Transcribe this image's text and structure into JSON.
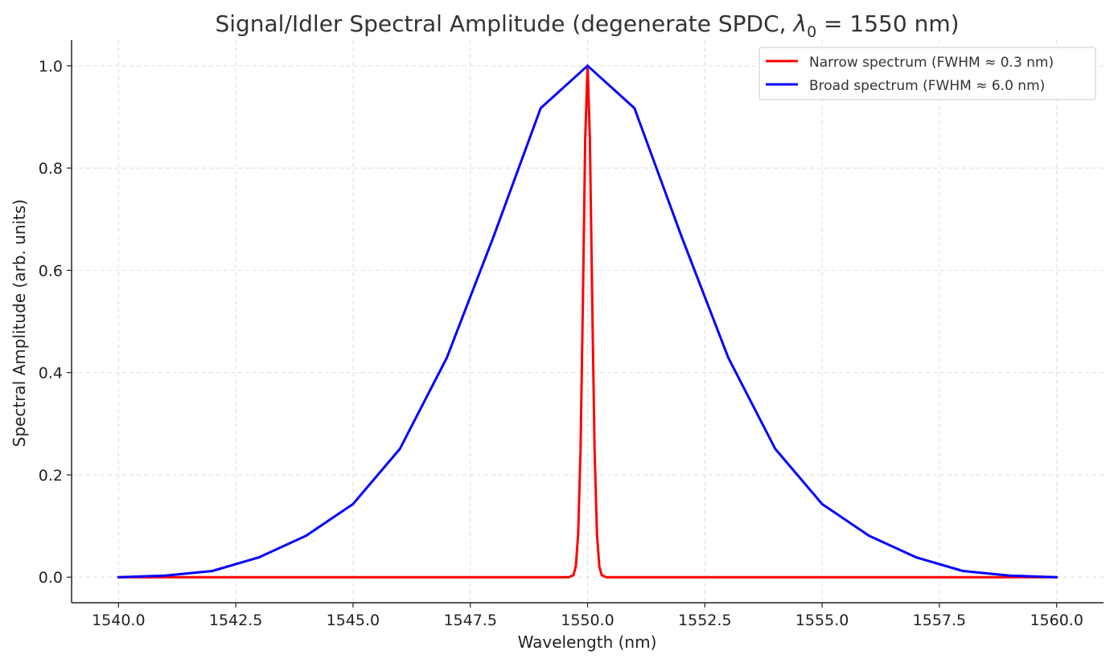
{
  "chart_data": {
    "type": "line",
    "title_main": "Signal/Idler Spectral Amplitude (degenerate SPDC, ",
    "title_symbol": "λ",
    "title_subscript": "0",
    "title_tail": " = 1550 nm)",
    "xlabel": "Wavelength (nm)",
    "ylabel": "Spectral Amplitude (arb. units)",
    "xlim": [
      1539.0,
      1561.0
    ],
    "ylim": [
      -0.05,
      1.05
    ],
    "x_ticks": [
      1540.0,
      1542.5,
      1545.0,
      1547.5,
      1550.0,
      1552.5,
      1555.0,
      1557.5,
      1560.0
    ],
    "x_tick_labels": [
      "1540.0",
      "1542.5",
      "1545.0",
      "1547.5",
      "1550.0",
      "1552.5",
      "1555.0",
      "1557.5",
      "1560.0"
    ],
    "y_ticks": [
      0.0,
      0.2,
      0.4,
      0.6,
      0.8,
      1.0
    ],
    "y_tick_labels": [
      "0.0",
      "0.2",
      "0.4",
      "0.6",
      "0.8",
      "1.0"
    ],
    "grid": true,
    "legend_position": "top-right",
    "series": [
      {
        "name": "Narrow spectrum (FWHM ≈ 0.3 nm)",
        "color": "#ff0000",
        "x": [
          1540.0,
          1549.6,
          1549.7,
          1549.75,
          1549.8,
          1549.85,
          1549.9,
          1549.95,
          1550.0,
          1550.05,
          1550.1,
          1550.15,
          1550.2,
          1550.25,
          1550.3,
          1550.4,
          1560.0
        ],
        "y": [
          0.0,
          0.0,
          0.004,
          0.021,
          0.084,
          0.25,
          0.54,
          0.857,
          1.0,
          0.857,
          0.54,
          0.25,
          0.084,
          0.021,
          0.004,
          0.0,
          0.0
        ]
      },
      {
        "name": "Broad spectrum (FWHM ≈ 6.0 nm)",
        "color": "#0000ff",
        "x": [
          1540.0,
          1541.0,
          1542.0,
          1543.0,
          1544.0,
          1545.0,
          1546.0,
          1547.0,
          1548.0,
          1549.0,
          1550.0,
          1551.0,
          1552.0,
          1553.0,
          1554.0,
          1555.0,
          1556.0,
          1557.0,
          1558.0,
          1559.0,
          1560.0
        ],
        "y": [
          0.0,
          0.003,
          0.012,
          0.039,
          0.081,
          0.143,
          0.251,
          0.429,
          0.667,
          0.917,
          1.0,
          0.917,
          0.667,
          0.429,
          0.251,
          0.143,
          0.081,
          0.039,
          0.012,
          0.003,
          0.0
        ]
      }
    ]
  }
}
